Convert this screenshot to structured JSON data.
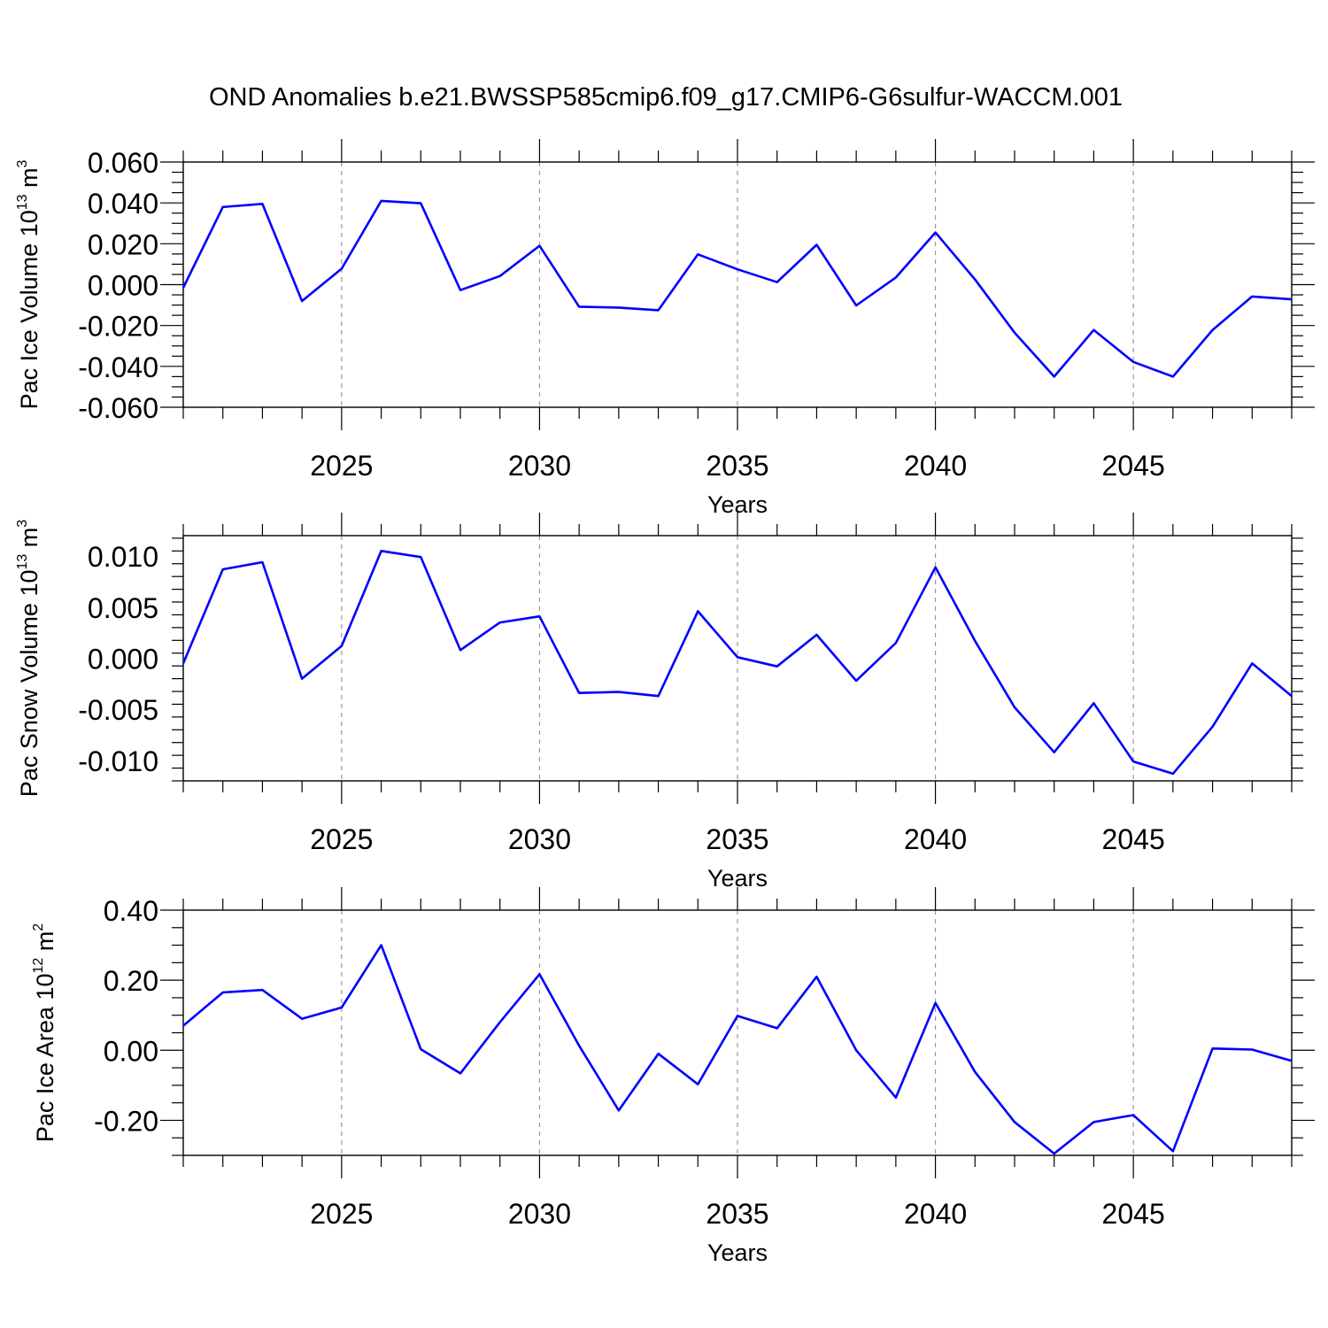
{
  "title": "OND Anomalies b.e21.BWSSP585cmip6.f09_g17.CMIP6-G6sulfur-WACCM.001",
  "colors": {
    "line": "#0000ff",
    "grid": "#999999",
    "frame": "#000000"
  },
  "chart_data": [
    {
      "type": "line",
      "ylabel": {
        "text": "Pac Ice Volume 10",
        "sup": "13",
        "unit": " m",
        "unit_sup": "3"
      },
      "xlabel": "Years",
      "xlim": [
        2021,
        2049
      ],
      "ylim": [
        -0.06,
        0.06
      ],
      "xticks": [
        2025,
        2030,
        2035,
        2040,
        2045
      ],
      "yticks": [
        0.06,
        0.04,
        0.02,
        0.0,
        -0.02,
        -0.04,
        -0.06
      ],
      "ytick_labels": [
        "0.060",
        "0.040",
        "0.020",
        "0.000",
        "-0.020",
        "-0.040",
        "-0.060"
      ],
      "x": [
        2021,
        2022,
        2023,
        2024,
        2025,
        2026,
        2027,
        2028,
        2029,
        2030,
        2031,
        2032,
        2033,
        2034,
        2035,
        2036,
        2037,
        2038,
        2039,
        2040,
        2041,
        2042,
        2043,
        2044,
        2045,
        2046,
        2047,
        2048,
        2049
      ],
      "values": [
        -0.0015,
        0.038,
        0.0395,
        -0.008,
        0.0078,
        0.041,
        0.0398,
        -0.0027,
        0.0042,
        0.019,
        -0.0108,
        -0.0112,
        -0.0125,
        0.0148,
        0.0075,
        0.0012,
        0.0195,
        -0.0102,
        0.0035,
        0.0255,
        0.0025,
        -0.0235,
        -0.045,
        -0.0222,
        -0.0378,
        -0.045,
        -0.0222,
        -0.0058,
        -0.0072
      ]
    },
    {
      "type": "line",
      "ylabel": {
        "text": "Pac Snow Volume 10",
        "sup": "13",
        "unit": " m",
        "unit_sup": "3"
      },
      "xlabel": "Years",
      "xlim": [
        2021,
        2049
      ],
      "ylim": [
        -0.012,
        0.012
      ],
      "xticks": [
        2025,
        2030,
        2035,
        2040,
        2045
      ],
      "yticks": [
        0.01,
        0.005,
        0.0,
        -0.005,
        -0.01
      ],
      "ytick_labels": [
        "0.010",
        "0.005",
        "0.000",
        "-0.005",
        "-0.010"
      ],
      "x": [
        2021,
        2022,
        2023,
        2024,
        2025,
        2026,
        2027,
        2028,
        2029,
        2030,
        2031,
        2032,
        2033,
        2034,
        2035,
        2036,
        2037,
        2038,
        2039,
        2040,
        2041,
        2042,
        2043,
        2044,
        2045,
        2046,
        2047,
        2048,
        2049
      ],
      "values": [
        -0.0005,
        0.0087,
        0.0094,
        -0.002,
        0.0012,
        0.0105,
        0.0099,
        0.0008,
        0.0035,
        0.0041,
        -0.0034,
        -0.0033,
        -0.0037,
        0.0046,
        0.0001,
        -0.0008,
        0.0023,
        -0.0022,
        0.0015,
        0.0089,
        0.0017,
        -0.0048,
        -0.0092,
        -0.0044,
        -0.0101,
        -0.0113,
        -0.0067,
        -0.0005,
        -0.0037
      ]
    },
    {
      "type": "line",
      "ylabel": {
        "text": "Pac Ice Area 10",
        "sup": "12",
        "unit": " m",
        "unit_sup": "2"
      },
      "xlabel": "Years",
      "xlim": [
        2021,
        2049
      ],
      "ylim": [
        -0.3,
        0.4
      ],
      "xticks": [
        2025,
        2030,
        2035,
        2040,
        2045
      ],
      "yticks": [
        0.4,
        0.2,
        0.0,
        -0.2
      ],
      "ytick_labels": [
        "0.40",
        "0.20",
        "0.00",
        "-0.20"
      ],
      "x": [
        2021,
        2022,
        2023,
        2024,
        2025,
        2026,
        2027,
        2028,
        2029,
        2030,
        2031,
        2032,
        2033,
        2034,
        2035,
        2036,
        2037,
        2038,
        2039,
        2040,
        2041,
        2042,
        2043,
        2044,
        2045,
        2046,
        2047,
        2048,
        2049
      ],
      "values": [
        0.07,
        0.165,
        0.172,
        0.09,
        0.122,
        0.3,
        0.003,
        -0.066,
        0.08,
        0.217,
        0.013,
        -0.172,
        -0.01,
        -0.097,
        0.098,
        0.063,
        0.21,
        0.0,
        -0.135,
        0.135,
        -0.062,
        -0.205,
        -0.295,
        -0.205,
        -0.185,
        -0.288,
        0.005,
        0.002,
        -0.03
      ]
    }
  ]
}
